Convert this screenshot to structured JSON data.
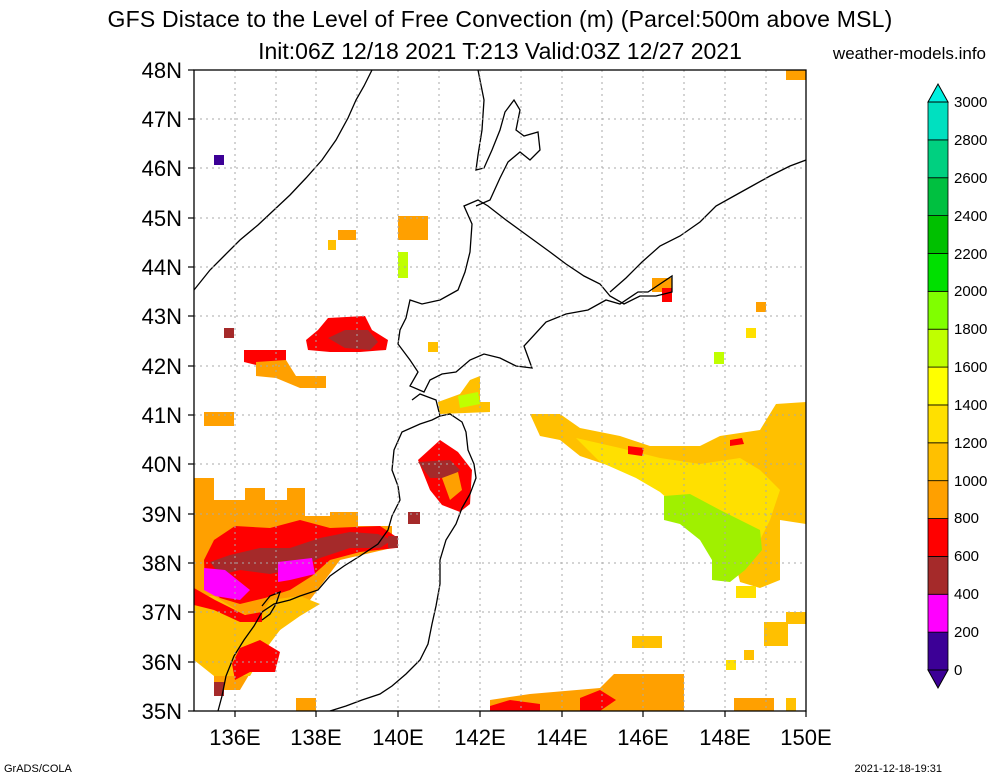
{
  "title_line1": "GFS Distace to the Level of Free Convection (m) (Parcel:500m above MSL)",
  "title_line2": "Init:06Z 12/18 2021 T:213 Valid:03Z 12/27 2021",
  "site": "weather-models.info",
  "footer_left": "GrADS/COLA",
  "footer_right": "2021-12-18-19:31",
  "map": {
    "lon_range": [
      135,
      150
    ],
    "lat_range": [
      35,
      48
    ],
    "lat_labels": [
      "35N",
      "36N",
      "37N",
      "38N",
      "39N",
      "40N",
      "41N",
      "42N",
      "43N",
      "44N",
      "45N",
      "46N",
      "47N",
      "48N"
    ],
    "lon_labels": [
      "136E",
      "138E",
      "140E",
      "142E",
      "144E",
      "146E",
      "148E",
      "150E"
    ]
  },
  "colorbar": {
    "labels": [
      "0",
      "200",
      "400",
      "600",
      "800",
      "1000",
      "1200",
      "1400",
      "1600",
      "1800",
      "2000",
      "2200",
      "2400",
      "2600",
      "2800",
      "3000"
    ],
    "colors": [
      "#3c0096",
      "#ff00ff",
      "#a52a2a",
      "#ff0000",
      "#ffa000",
      "#ffc000",
      "#ffe000",
      "#ffff00",
      "#c0ff00",
      "#80ff00",
      "#00e000",
      "#00c000",
      "#00c040",
      "#00d080",
      "#00e0c0",
      "#00f0e0"
    ]
  }
}
